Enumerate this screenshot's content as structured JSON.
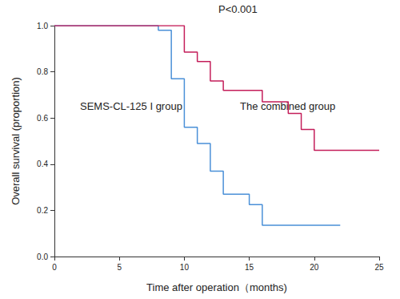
{
  "chart_data": {
    "type": "line",
    "line_style": "step",
    "title": "P<0.001",
    "x_label": "Time after operation（months)",
    "y_label": "Overall survival (proportion)",
    "xlim": [
      0,
      25
    ],
    "xticks": [
      0,
      5,
      10,
      15,
      20,
      25
    ],
    "ylim": [
      0,
      1
    ],
    "yticks": [
      {
        "value": 0,
        "label": "0.0"
      },
      {
        "value": 0.2,
        "label": "0.2"
      },
      {
        "value": 0.4,
        "label": "0.4"
      },
      {
        "value": 0.6,
        "label": "0.6"
      },
      {
        "value": 0.8,
        "label": "0.8"
      },
      {
        "value": 1,
        "label": "1.0"
      }
    ],
    "grid": false,
    "series": [
      {
        "name": "SEMS-CL-125 I group",
        "color": "#4a90d8",
        "x": [
          0,
          8,
          9,
          10,
          11,
          12,
          13,
          15,
          16,
          22
        ],
        "values": [
          1,
          0.98,
          0.77,
          0.56,
          0.49,
          0.37,
          0.27,
          0.225,
          0.135,
          0.135
        ]
      },
      {
        "name": "The combined group",
        "color": "#c41e5a",
        "x": [
          0,
          10,
          11,
          12,
          13,
          16,
          18,
          19,
          20,
          25
        ],
        "values": [
          1,
          0.885,
          0.845,
          0.76,
          0.72,
          0.67,
          0.62,
          0.55,
          0.46,
          0.46
        ]
      }
    ]
  }
}
